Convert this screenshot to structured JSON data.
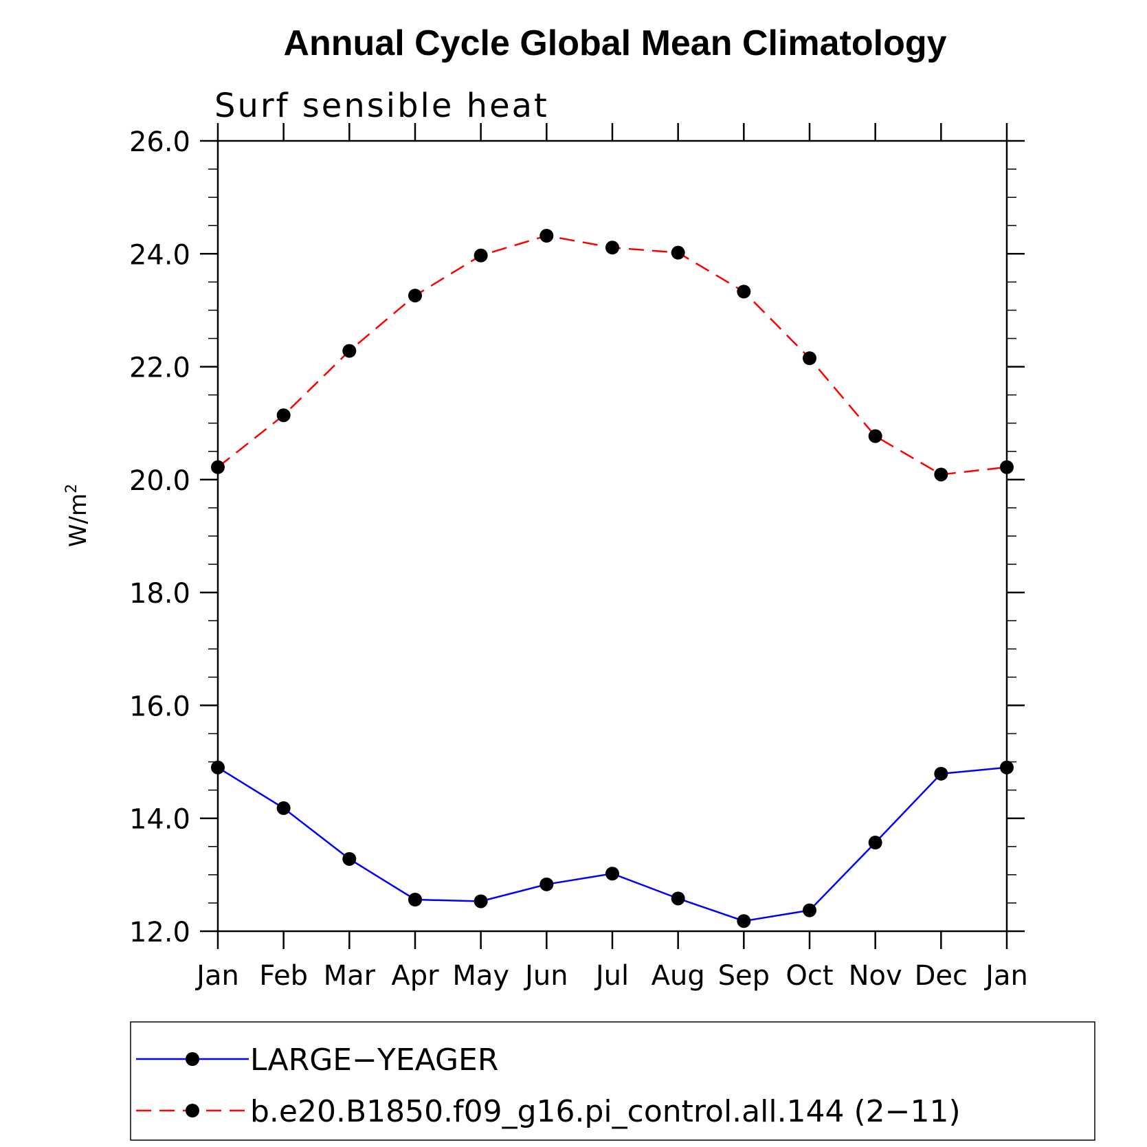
{
  "chart_data": {
    "type": "line",
    "title": "Annual Cycle Global Mean Climatology",
    "subtitle": "Surf sensible heat",
    "ylabel": "W/m",
    "ylabel_superscript": "2",
    "xlabel": "",
    "categories": [
      "Jan",
      "Feb",
      "Mar",
      "Apr",
      "May",
      "Jun",
      "Jul",
      "Aug",
      "Sep",
      "Oct",
      "Nov",
      "Dec",
      "Jan"
    ],
    "ylim": [
      12.0,
      26.0
    ],
    "yticks": [
      "12.0",
      "14.0",
      "16.0",
      "18.0",
      "20.0",
      "22.0",
      "24.0",
      "26.0"
    ],
    "grid": false,
    "legend_position": "bottom",
    "series": [
      {
        "name": "LARGE−YEAGER",
        "color": "#0000ff",
        "style": "solid",
        "values": [
          14.9,
          14.18,
          13.28,
          12.56,
          12.53,
          12.83,
          13.02,
          12.58,
          12.18,
          12.37,
          13.57,
          14.79,
          14.9
        ]
      },
      {
        "name": "b.e20.B1850.f09_g16.pi_control.all.144 (2−11)",
        "color": "#ff0000",
        "style": "dashed",
        "values": [
          20.22,
          21.14,
          22.28,
          23.26,
          23.97,
          24.32,
          24.11,
          24.02,
          23.33,
          22.15,
          20.77,
          20.09,
          20.22
        ]
      }
    ]
  }
}
